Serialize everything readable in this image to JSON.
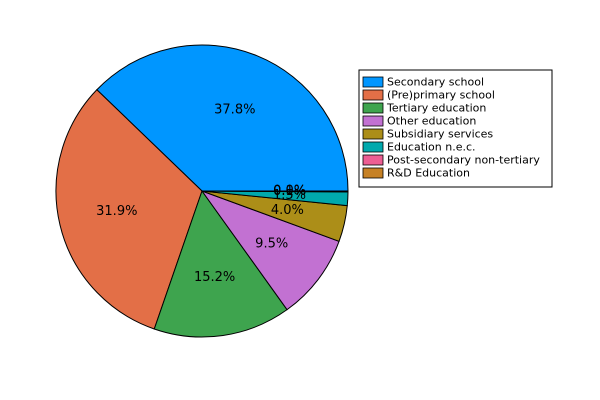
{
  "chart_data": {
    "type": "pie",
    "categories": [
      "Secondary school",
      "(Pre)primary school",
      "Tertiary education",
      "Other education",
      "Subsidiary services",
      "Education n.e.c.",
      "Post-secondary non-tertiary",
      "R&D Education"
    ],
    "values": [
      37.8,
      31.9,
      15.2,
      9.5,
      4.0,
      1.5,
      0.1,
      0.0
    ],
    "labels": [
      "37.8%",
      "31.9%",
      "15.2%",
      "9.5%",
      "4.0%",
      "1.5%",
      "0.1%",
      "0.0%"
    ],
    "colors": [
      "#0096ff",
      "#e36f47",
      "#3ea44e",
      "#c271d2",
      "#ac8e18",
      "#00a9ad",
      "#ed5e93",
      "#c68125"
    ],
    "legend": "right",
    "title": ""
  }
}
